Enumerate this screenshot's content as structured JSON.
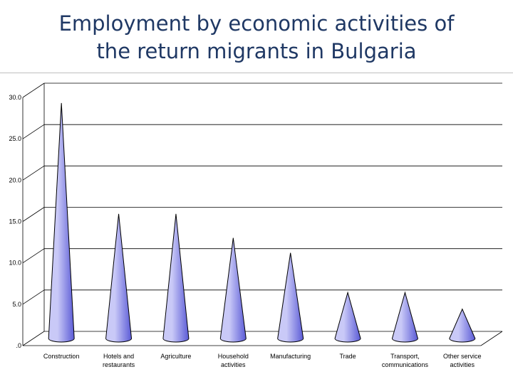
{
  "slide": {
    "title_line1": "Employment by economic activities of",
    "title_line2": "the return migrants in Bulgaria"
  },
  "chart_data": {
    "type": "bar",
    "bar_shape": "cone",
    "title": "Employment by economic activities of the return migrants in Bulgaria",
    "xlabel": "",
    "ylabel": "",
    "ylim": [
      0,
      30
    ],
    "yticks": [
      "30.0",
      "25.0",
      "20.0",
      "15.0",
      "10.0",
      "5.0",
      ".0"
    ],
    "grid": true,
    "legend": "none",
    "categories": [
      [
        "Construction"
      ],
      [
        "Hotels and",
        "restaurants"
      ],
      [
        "Agriculture"
      ],
      [
        "Household",
        "activities"
      ],
      [
        "Manufacturing"
      ],
      [
        "Trade"
      ],
      [
        "Transport,",
        "communications"
      ],
      [
        "Other service",
        "activities"
      ]
    ],
    "values": [
      28.8,
      15.4,
      15.4,
      12.5,
      10.7,
      5.9,
      5.9,
      3.9
    ],
    "colors": {
      "cone_light": "#c9c9f7",
      "cone_dark": "#5a5ad6",
      "outline": "#000000"
    }
  }
}
